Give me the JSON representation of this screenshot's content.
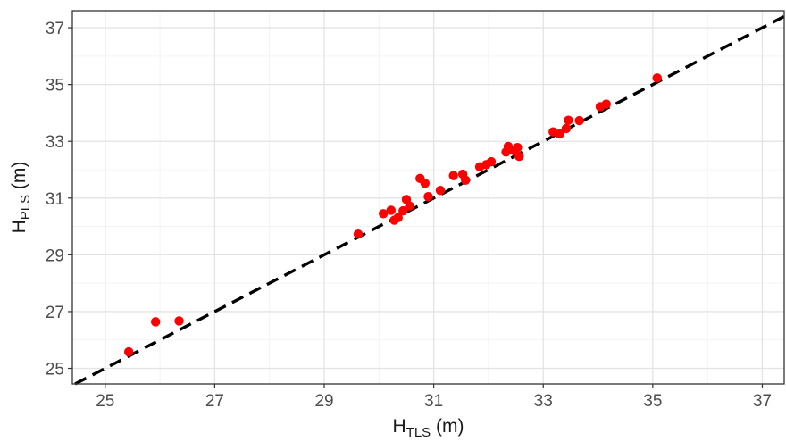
{
  "chart_data": {
    "type": "scatter",
    "title": "",
    "xlabel": {
      "main": "H",
      "sub": "TLS",
      "unit": " (m)"
    },
    "ylabel": {
      "main": "H",
      "sub": "PLS",
      "unit": " (m)"
    },
    "xlim": [
      24.4,
      37.4
    ],
    "ylim": [
      24.45,
      37.6
    ],
    "x_ticks": [
      25,
      27,
      29,
      31,
      33,
      35,
      37
    ],
    "y_ticks": [
      25,
      27,
      29,
      31,
      33,
      35,
      37
    ],
    "x_tick_labels": [
      "25",
      "27",
      "29",
      "31",
      "33",
      "35",
      "37"
    ],
    "y_tick_labels": [
      "25",
      "27",
      "29",
      "31",
      "33",
      "35",
      "37"
    ],
    "grid": true,
    "reference_line": {
      "slope": 1,
      "intercept": 0,
      "style": "dashed",
      "color": "#000000"
    },
    "point_color": "#ff0000",
    "points": [
      {
        "x": 25.43,
        "y": 25.58
      },
      {
        "x": 25.92,
        "y": 26.64
      },
      {
        "x": 26.35,
        "y": 26.67
      },
      {
        "x": 29.62,
        "y": 29.73
      },
      {
        "x": 30.08,
        "y": 30.45
      },
      {
        "x": 30.22,
        "y": 30.57
      },
      {
        "x": 30.28,
        "y": 30.22
      },
      {
        "x": 30.35,
        "y": 30.31
      },
      {
        "x": 30.44,
        "y": 30.55
      },
      {
        "x": 30.5,
        "y": 30.95
      },
      {
        "x": 30.56,
        "y": 30.72
      },
      {
        "x": 30.75,
        "y": 31.69
      },
      {
        "x": 30.84,
        "y": 31.52
      },
      {
        "x": 30.9,
        "y": 31.05
      },
      {
        "x": 31.12,
        "y": 31.27
      },
      {
        "x": 31.36,
        "y": 31.79
      },
      {
        "x": 31.53,
        "y": 31.84
      },
      {
        "x": 31.58,
        "y": 31.63
      },
      {
        "x": 31.84,
        "y": 32.1
      },
      {
        "x": 31.96,
        "y": 32.18
      },
      {
        "x": 32.05,
        "y": 32.28
      },
      {
        "x": 32.32,
        "y": 32.62
      },
      {
        "x": 32.36,
        "y": 32.82
      },
      {
        "x": 32.45,
        "y": 32.68
      },
      {
        "x": 32.53,
        "y": 32.78
      },
      {
        "x": 32.56,
        "y": 32.47
      },
      {
        "x": 33.18,
        "y": 33.33
      },
      {
        "x": 33.3,
        "y": 33.26
      },
      {
        "x": 33.42,
        "y": 33.45
      },
      {
        "x": 33.46,
        "y": 33.74
      },
      {
        "x": 33.66,
        "y": 33.73
      },
      {
        "x": 34.04,
        "y": 34.22
      },
      {
        "x": 34.15,
        "y": 34.31
      },
      {
        "x": 35.08,
        "y": 35.23
      }
    ]
  }
}
